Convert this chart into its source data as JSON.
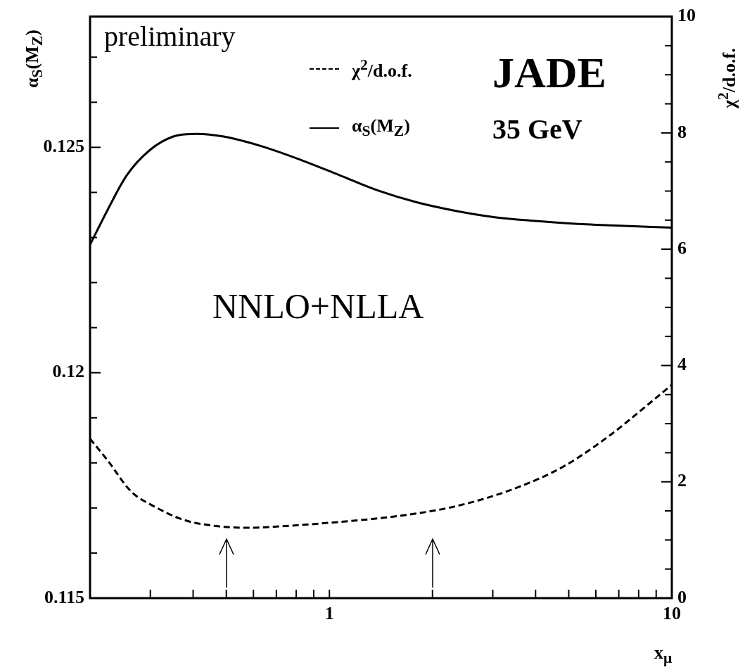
{
  "chart_data": {
    "type": "line",
    "xlabel": "x$_{μ}$",
    "ylabel": "α$_{S}$(M$_{Z}$)",
    "y2label": "χ$^{2}$/d.o.f.",
    "log": "x",
    "grid": false,
    "legend": "top",
    "marker": "none",
    "xlim": [
      0.2,
      10
    ],
    "xticks": [
      {
        "value": 0.2,
        "label": null
      },
      {
        "value": 0.3,
        "label": null
      },
      {
        "value": 0.4,
        "label": null
      },
      {
        "value": 0.5,
        "label": null
      },
      {
        "value": 0.6,
        "label": null
      },
      {
        "value": 0.7,
        "label": null
      },
      {
        "value": 0.8,
        "label": null
      },
      {
        "value": 0.9,
        "label": null
      },
      1,
      {
        "value": 2,
        "label": null
      },
      {
        "value": 3,
        "label": null
      },
      {
        "value": 4,
        "label": null
      },
      {
        "value": 5,
        "label": null
      },
      {
        "value": 6,
        "label": null
      },
      {
        "value": 7,
        "label": null
      },
      {
        "value": 8,
        "label": null
      },
      {
        "value": 9,
        "label": null
      },
      10
    ],
    "ylim": [
      0.115,
      0.1279
    ],
    "yticks": [
      0.115,
      {
        "value": 0.116,
        "label": null
      },
      {
        "value": 0.117,
        "label": null
      },
      {
        "value": 0.118,
        "label": null
      },
      {
        "value": 0.119,
        "label": null
      },
      0.12,
      {
        "value": 0.121,
        "label": null
      },
      {
        "value": 0.122,
        "label": null
      },
      {
        "value": 0.123,
        "label": null
      },
      {
        "value": 0.124,
        "label": null
      },
      0.125,
      {
        "value": 0.126,
        "label": null
      },
      {
        "value": 0.127,
        "label": null
      }
    ],
    "y2lim": [
      0,
      10
    ],
    "y2ticks": [
      0,
      {
        "value": 0.5,
        "label": null
      },
      {
        "value": 1,
        "label": null
      },
      {
        "value": 1.5,
        "label": null
      },
      2,
      {
        "value": 2.5,
        "label": null
      },
      {
        "value": 3,
        "label": null
      },
      {
        "value": 3.5,
        "label": null
      },
      4,
      {
        "value": 4.5,
        "label": null
      },
      {
        "value": 5,
        "label": null
      },
      {
        "value": 5.5,
        "label": null
      },
      6,
      {
        "value": 6.5,
        "label": null
      },
      {
        "value": 7,
        "label": null
      },
      {
        "value": 7.5,
        "label": null
      },
      8,
      {
        "value": 8.5,
        "label": null
      },
      {
        "value": 9,
        "label": null
      },
      {
        "value": 9.5,
        "label": null
      },
      10
    ],
    "series": [
      {
        "name": "χ$^{2}$/d.o.f.",
        "color": "#000000",
        "axis": "y2",
        "line_style": "dashed",
        "x": [
          0.2,
          0.225,
          0.263,
          0.307,
          0.378,
          0.466,
          0.574,
          0.745,
          1.07,
          1.58,
          2.34,
          3.46,
          4.85,
          6.63,
          8.17,
          10
        ],
        "values": [
          2.74,
          2.37,
          1.84,
          1.58,
          1.34,
          1.24,
          1.21,
          1.24,
          1.31,
          1.41,
          1.58,
          1.88,
          2.27,
          2.81,
          3.24,
          3.67
        ]
      },
      {
        "name": "α$_{S}$(M$_{Z}$)",
        "color": "#000000",
        "axis": "y",
        "line_style": "solid",
        "x": [
          0.2,
          0.225,
          0.256,
          0.299,
          0.35,
          0.409,
          0.491,
          0.637,
          0.826,
          1.072,
          1.39,
          1.8,
          2.34,
          3.04,
          3.94,
          5.11,
          6.64,
          10
        ],
        "values": [
          0.12284,
          0.12361,
          0.12438,
          0.12494,
          0.12524,
          0.1253,
          0.12524,
          0.12502,
          0.12472,
          0.12438,
          0.12404,
          0.12378,
          0.12359,
          0.12345,
          0.12337,
          0.12331,
          0.12327,
          0.12322
        ]
      }
    ],
    "ref_lines": [
      {
        "axis": "x",
        "value": 0.5
      },
      {
        "axis": "x",
        "value": 2
      }
    ],
    "annotations": [
      "preliminary",
      "JADE",
      "35 GeV",
      "NNLO+NLLA"
    ]
  }
}
